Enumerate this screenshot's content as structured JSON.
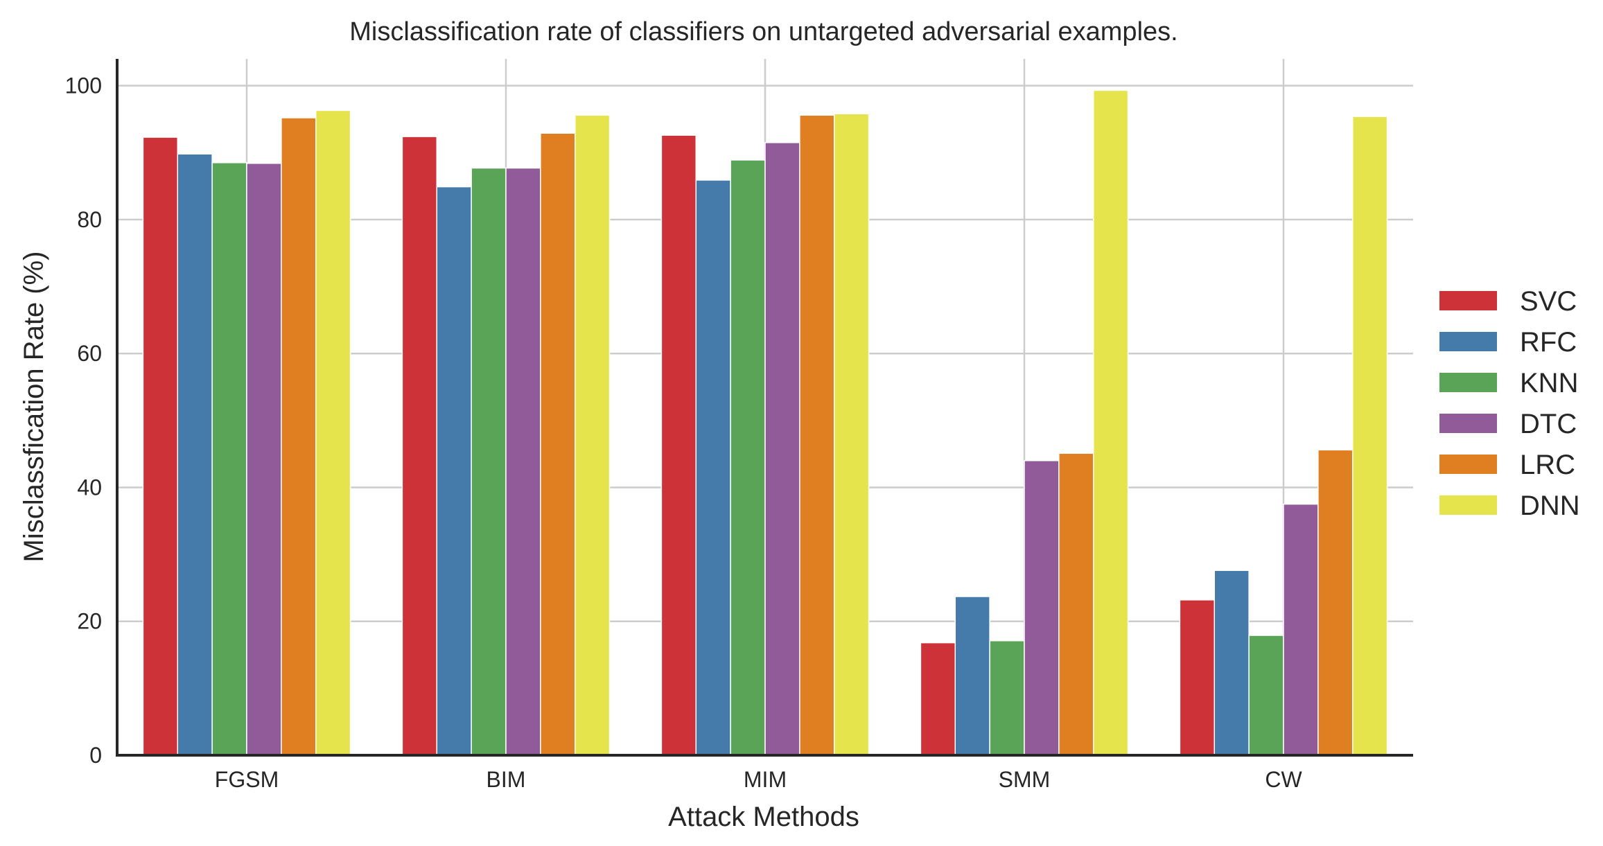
{
  "chart_data": {
    "type": "bar",
    "title": "Misclassification rate of classifiers on untargeted adversarial examples.",
    "xlabel": "Attack Methods",
    "ylabel": "Misclassfication Rate (%)",
    "categories": [
      "FGSM",
      "BIM",
      "MIM",
      "SMM",
      "CW"
    ],
    "ylim": [
      0,
      104
    ],
    "yticks": [
      0,
      20,
      40,
      60,
      80,
      100
    ],
    "grid": true,
    "legend_position": "right",
    "series": [
      {
        "name": "SVC",
        "color": "#cc3237",
        "values": [
          92.3,
          92.4,
          92.6,
          16.8,
          23.2
        ]
      },
      {
        "name": "RFC",
        "color": "#457bab",
        "values": [
          89.8,
          84.9,
          85.9,
          23.7,
          27.6
        ]
      },
      {
        "name": "KNN",
        "color": "#5aa457",
        "values": [
          88.5,
          87.7,
          88.9,
          17.1,
          17.9
        ]
      },
      {
        "name": "DTC",
        "color": "#915a98",
        "values": [
          88.4,
          87.7,
          91.5,
          44.0,
          37.5
        ]
      },
      {
        "name": "LRC",
        "color": "#e07f22",
        "values": [
          95.2,
          92.9,
          95.6,
          45.1,
          45.6
        ]
      },
      {
        "name": "DNN",
        "color": "#e6e44d",
        "values": [
          96.3,
          95.6,
          95.8,
          99.3,
          95.4
        ]
      }
    ]
  }
}
